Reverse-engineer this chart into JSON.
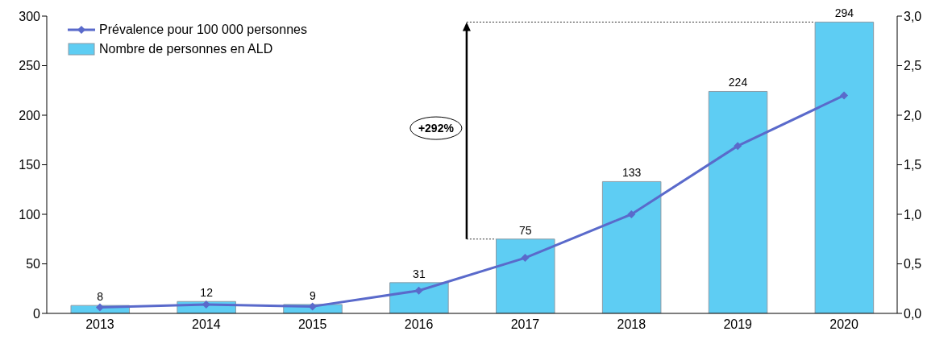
{
  "chart_data": {
    "type": "bar",
    "categories": [
      "2013",
      "2014",
      "2015",
      "2016",
      "2017",
      "2018",
      "2019",
      "2020"
    ],
    "series": [
      {
        "name": "Prévalence pour 100 000 personnes",
        "type": "line",
        "axis": "y2",
        "color": "#5a6acb",
        "values": [
          0.06,
          0.09,
          0.07,
          0.23,
          0.56,
          1.0,
          1.69,
          2.2
        ]
      },
      {
        "name": "Nombre de personnes en ALD",
        "color": "#5ecdf3",
        "values": [
          8,
          12,
          9,
          31,
          75,
          133,
          224,
          294
        ],
        "value_labels": [
          "8",
          "12",
          "9",
          "31",
          "75",
          "133",
          "224",
          "294"
        ]
      }
    ],
    "marker": "diamond",
    "legend": "top left",
    "ylim": [
      0,
      300
    ],
    "yticks": [
      0,
      50,
      100,
      150,
      200,
      250,
      300
    ],
    "y2lim": [
      0,
      3
    ],
    "y2ticks": [
      {
        "value": 0,
        "label": "0,0"
      },
      {
        "value": 0.5,
        "label": "0,5"
      },
      {
        "value": 1,
        "label": "1,0"
      },
      {
        "value": 1.5,
        "label": "1,5"
      },
      {
        "value": 2,
        "label": "2,0"
      },
      {
        "value": 2.5,
        "label": "2,5"
      },
      {
        "value": 3,
        "label": "3,0"
      }
    ],
    "annotations": [
      "+292%"
    ]
  }
}
